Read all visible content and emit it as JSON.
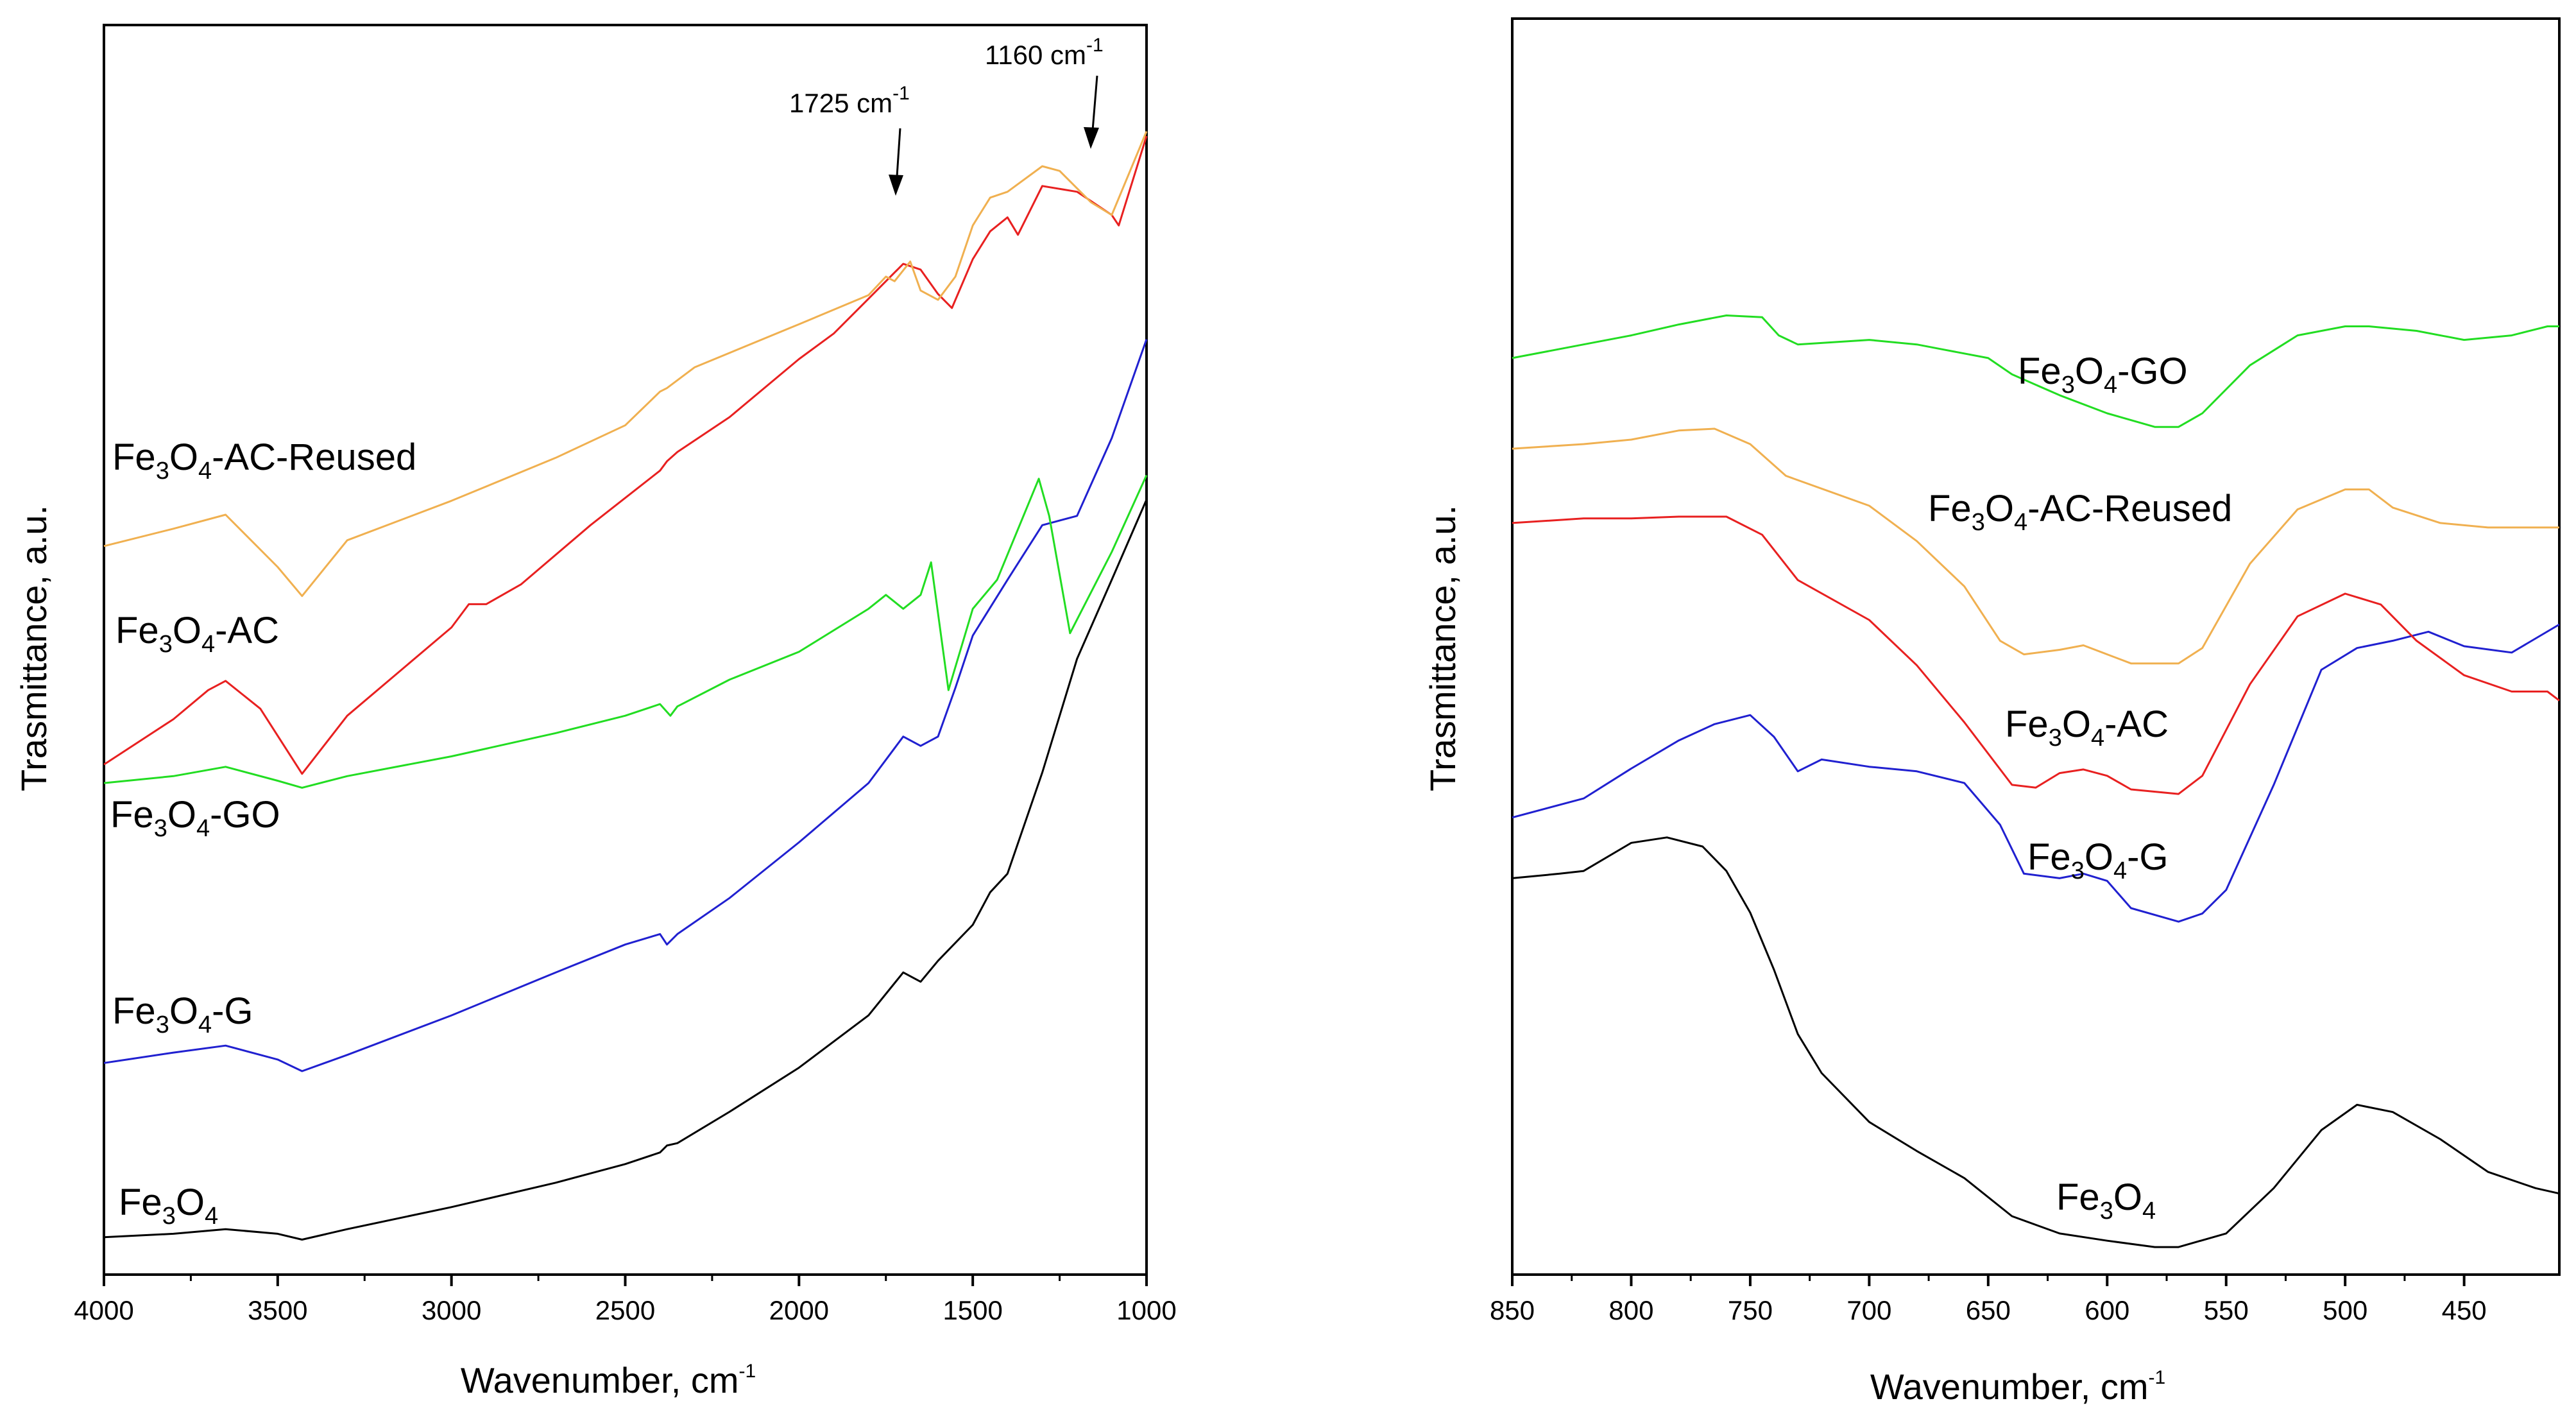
{
  "colors": {
    "Fe3O4": "#000000",
    "Fe3O4-G": "#2020d0",
    "Fe3O4-GO": "#22dd22",
    "Fe3O4-AC": "#e82020",
    "Fe3O4-AC-Reused": "#f0b050"
  },
  "chart_data": [
    {
      "type": "line",
      "xlabel": "Wavenumber, cm",
      "xlabel_sup": "-1",
      "ylabel": "Trasmittance, a.u.",
      "xlim": [
        4000,
        1000
      ],
      "ylim": [
        0,
        100
      ],
      "x_ticks": [
        4000,
        3500,
        3000,
        2500,
        2000,
        1500,
        1000
      ],
      "x_tick_labels": [
        "4000",
        "3500",
        "3000",
        "2500",
        "2000",
        "1500",
        "1000"
      ],
      "annotations": [
        {
          "main": "1725 cm",
          "sup": "-1",
          "x": 1725,
          "y": 84
        },
        {
          "main": "1160 cm",
          "sup": "-1",
          "x": 1160,
          "y": 90
        }
      ],
      "series": [
        {
          "id": "Fe3O4",
          "label": {
            "main": "Fe",
            "s1": "3",
            "mid": "O",
            "s2": "4",
            "tail": ""
          },
          "x": [
            4000,
            3800,
            3650,
            3500,
            3430,
            3300,
            3000,
            2700,
            2500,
            2400,
            2380,
            2350,
            2200,
            2000,
            1800,
            1700,
            1650,
            1600,
            1500,
            1450,
            1400,
            1300,
            1200,
            1100,
            1000
          ],
          "y": [
            1.5,
            1.8,
            2.2,
            1.8,
            1.3,
            2.2,
            4.1,
            6.2,
            7.8,
            8.8,
            9.4,
            9.6,
            12.3,
            16.1,
            20.6,
            24.3,
            23.5,
            25.3,
            28.4,
            31.2,
            32.8,
            41.5,
            51.3,
            58.1,
            65.0
          ]
        },
        {
          "id": "Fe3O4-G",
          "label": {
            "main": "Fe",
            "s1": "3",
            "mid": "O",
            "s2": "4",
            "tail": "-G"
          },
          "x": [
            4000,
            3800,
            3650,
            3500,
            3430,
            3300,
            3000,
            2700,
            2500,
            2400,
            2380,
            2350,
            2200,
            2000,
            1800,
            1700,
            1650,
            1600,
            1550,
            1500,
            1400,
            1300,
            1200,
            1100,
            1000
          ],
          "y": [
            16.5,
            17.4,
            18.0,
            16.8,
            15.8,
            17.2,
            20.6,
            24.3,
            26.7,
            27.6,
            26.7,
            27.6,
            30.7,
            35.5,
            40.6,
            44.6,
            43.8,
            44.6,
            48.8,
            53.3,
            58.1,
            62.8,
            63.6,
            70.3,
            78.8
          ]
        },
        {
          "id": "Fe3O4-GO",
          "label": {
            "main": "Fe",
            "s1": "3",
            "mid": "O",
            "s2": "4",
            "tail": "-GO"
          },
          "x": [
            4000,
            3800,
            3650,
            3500,
            3430,
            3300,
            3000,
            2700,
            2500,
            2400,
            2370,
            2350,
            2200,
            2000,
            1800,
            1750,
            1700,
            1650,
            1620,
            1570,
            1500,
            1430,
            1310,
            1280,
            1220,
            1100,
            1000
          ],
          "y": [
            40.6,
            41.2,
            42.0,
            40.8,
            40.2,
            41.2,
            42.9,
            44.9,
            46.4,
            47.4,
            46.4,
            47.2,
            49.5,
            51.9,
            55.6,
            56.8,
            55.6,
            56.8,
            59.6,
            48.6,
            55.6,
            58.1,
            66.8,
            63.6,
            53.5,
            60.5,
            67.1
          ]
        },
        {
          "id": "Fe3O4-AC",
          "label": {
            "main": "Fe",
            "s1": "3",
            "mid": "O",
            "s2": "4",
            "tail": "-AC"
          },
          "x": [
            4000,
            3800,
            3700,
            3650,
            3550,
            3430,
            3300,
            3000,
            2950,
            2900,
            2800,
            2600,
            2400,
            2380,
            2350,
            2200,
            2000,
            1900,
            1800,
            1700,
            1650,
            1600,
            1560,
            1500,
            1450,
            1400,
            1370,
            1300,
            1200,
            1100,
            1080,
            1000
          ],
          "y": [
            42.2,
            46.1,
            48.6,
            49.4,
            47.0,
            41.4,
            46.4,
            54.0,
            56.0,
            56.0,
            57.7,
            62.8,
            67.5,
            68.3,
            69.1,
            72.1,
            77.1,
            79.3,
            82.3,
            85.3,
            84.8,
            82.7,
            81.5,
            85.7,
            88.1,
            89.3,
            87.8,
            92.0,
            91.5,
            89.5,
            88.6,
            96.3
          ]
        },
        {
          "id": "Fe3O4-AC-Reused",
          "label": {
            "main": "Fe",
            "s1": "3",
            "mid": "O",
            "s2": "4",
            "tail": "-AC-Reused"
          },
          "x": [
            4000,
            3800,
            3650,
            3500,
            3430,
            3300,
            3000,
            2700,
            2500,
            2400,
            2380,
            2300,
            2000,
            1800,
            1750,
            1725,
            1680,
            1650,
            1600,
            1550,
            1500,
            1450,
            1400,
            1300,
            1250,
            1160,
            1100,
            1000
          ],
          "y": [
            61.0,
            62.5,
            63.7,
            59.2,
            56.7,
            61.5,
            64.9,
            68.6,
            71.4,
            74.3,
            74.6,
            76.4,
            80.1,
            82.6,
            84.2,
            83.8,
            85.5,
            83.0,
            82.2,
            84.2,
            88.6,
            91.0,
            91.5,
            93.7,
            93.3,
            90.6,
            89.5,
            96.7
          ]
        }
      ]
    },
    {
      "type": "line",
      "xlabel": "Wavenumber, cm",
      "xlabel_sup": "-1",
      "ylabel": "Trasmittance, a.u.",
      "xlim": [
        850,
        410
      ],
      "ylim": [
        0,
        100
      ],
      "x_ticks": [
        850,
        800,
        750,
        700,
        650,
        600,
        550,
        500,
        450
      ],
      "x_tick_labels": [
        "850",
        "800",
        "750",
        "700",
        "650",
        "600",
        "550",
        "500",
        "450"
      ],
      "annotations": [],
      "series": [
        {
          "id": "Fe3O4",
          "label": {
            "main": "Fe",
            "s1": "3",
            "mid": "O",
            "s2": "4",
            "tail": ""
          },
          "x": [
            850,
            830,
            820,
            800,
            785,
            770,
            760,
            750,
            740,
            730,
            720,
            700,
            680,
            660,
            640,
            620,
            600,
            580,
            570,
            550,
            530,
            510,
            495,
            480,
            460,
            440,
            420,
            410
          ],
          "y": [
            41.9,
            42.4,
            42.7,
            45.8,
            46.4,
            45.4,
            42.7,
            38.1,
            31.8,
            24.7,
            20.4,
            15.0,
            11.8,
            8.8,
            4.6,
            2.7,
            1.9,
            1.2,
            1.2,
            2.7,
            7.7,
            14.1,
            16.9,
            16.1,
            13.1,
            9.5,
            7.7,
            7.1
          ]
        },
        {
          "id": "Fe3O4-G",
          "label": {
            "main": "Fe",
            "s1": "3",
            "mid": "O",
            "s2": "4",
            "tail": "-G"
          },
          "x": [
            850,
            820,
            800,
            780,
            765,
            750,
            740,
            730,
            720,
            700,
            680,
            660,
            645,
            635,
            620,
            610,
            600,
            590,
            570,
            560,
            550,
            530,
            510,
            495,
            480,
            465,
            450,
            430,
            410
          ],
          "y": [
            48.6,
            50.7,
            54.0,
            57.1,
            58.9,
            59.9,
            57.5,
            53.7,
            55.0,
            54.2,
            53.7,
            52.4,
            47.8,
            42.4,
            41.9,
            42.4,
            41.6,
            38.6,
            37.1,
            38.0,
            40.6,
            52.2,
            64.9,
            67.3,
            68.1,
            69.1,
            67.5,
            66.8,
            69.9
          ]
        },
        {
          "id": "Fe3O4-AC",
          "label": {
            "main": "Fe",
            "s1": "3",
            "mid": "O",
            "s2": "4",
            "tail": "-AC"
          },
          "x": [
            850,
            820,
            800,
            780,
            760,
            745,
            730,
            700,
            680,
            660,
            640,
            630,
            620,
            610,
            600,
            590,
            570,
            560,
            540,
            520,
            500,
            485,
            470,
            450,
            430,
            415,
            410
          ],
          "y": [
            81.1,
            81.6,
            81.6,
            81.8,
            81.8,
            79.8,
            74.8,
            70.4,
            65.4,
            59.1,
            52.2,
            51.9,
            53.5,
            53.9,
            53.2,
            51.7,
            51.2,
            53.2,
            63.3,
            70.8,
            73.3,
            72.1,
            68.1,
            64.3,
            62.5,
            62.5,
            61.5
          ]
        },
        {
          "id": "Fe3O4-AC-Reused",
          "label": {
            "main": "Fe",
            "s1": "3",
            "mid": "O",
            "s2": "4",
            "tail": "-AC-Reused"
          },
          "x": [
            850,
            820,
            800,
            780,
            765,
            750,
            735,
            700,
            680,
            660,
            645,
            635,
            620,
            610,
            600,
            590,
            570,
            560,
            540,
            520,
            500,
            490,
            480,
            460,
            440,
            420,
            410
          ],
          "y": [
            89.3,
            89.8,
            90.3,
            91.3,
            91.5,
            89.8,
            86.3,
            83.0,
            79.1,
            74.1,
            68.1,
            66.6,
            67.1,
            67.6,
            66.6,
            65.6,
            65.6,
            67.3,
            76.6,
            82.6,
            84.8,
            84.8,
            82.8,
            81.1,
            80.6,
            80.6,
            80.6
          ]
        },
        {
          "id": "Fe3O4-GO",
          "label": {
            "main": "Fe",
            "s1": "3",
            "mid": "O",
            "s2": "4",
            "tail": "-GO"
          },
          "x": [
            850,
            820,
            800,
            780,
            760,
            745,
            738,
            730,
            700,
            680,
            670,
            650,
            640,
            620,
            600,
            580,
            570,
            560,
            540,
            520,
            500,
            490,
            470,
            450,
            430,
            415,
            410
          ],
          "y": [
            99.3,
            100.8,
            101.8,
            103.0,
            104.0,
            103.8,
            101.8,
            100.8,
            101.3,
            100.8,
            100.3,
            99.3,
            97.5,
            95.2,
            93.2,
            91.7,
            91.7,
            93.2,
            98.5,
            101.8,
            102.8,
            102.8,
            102.3,
            101.3,
            101.8,
            102.8,
            102.8
          ]
        }
      ]
    }
  ]
}
